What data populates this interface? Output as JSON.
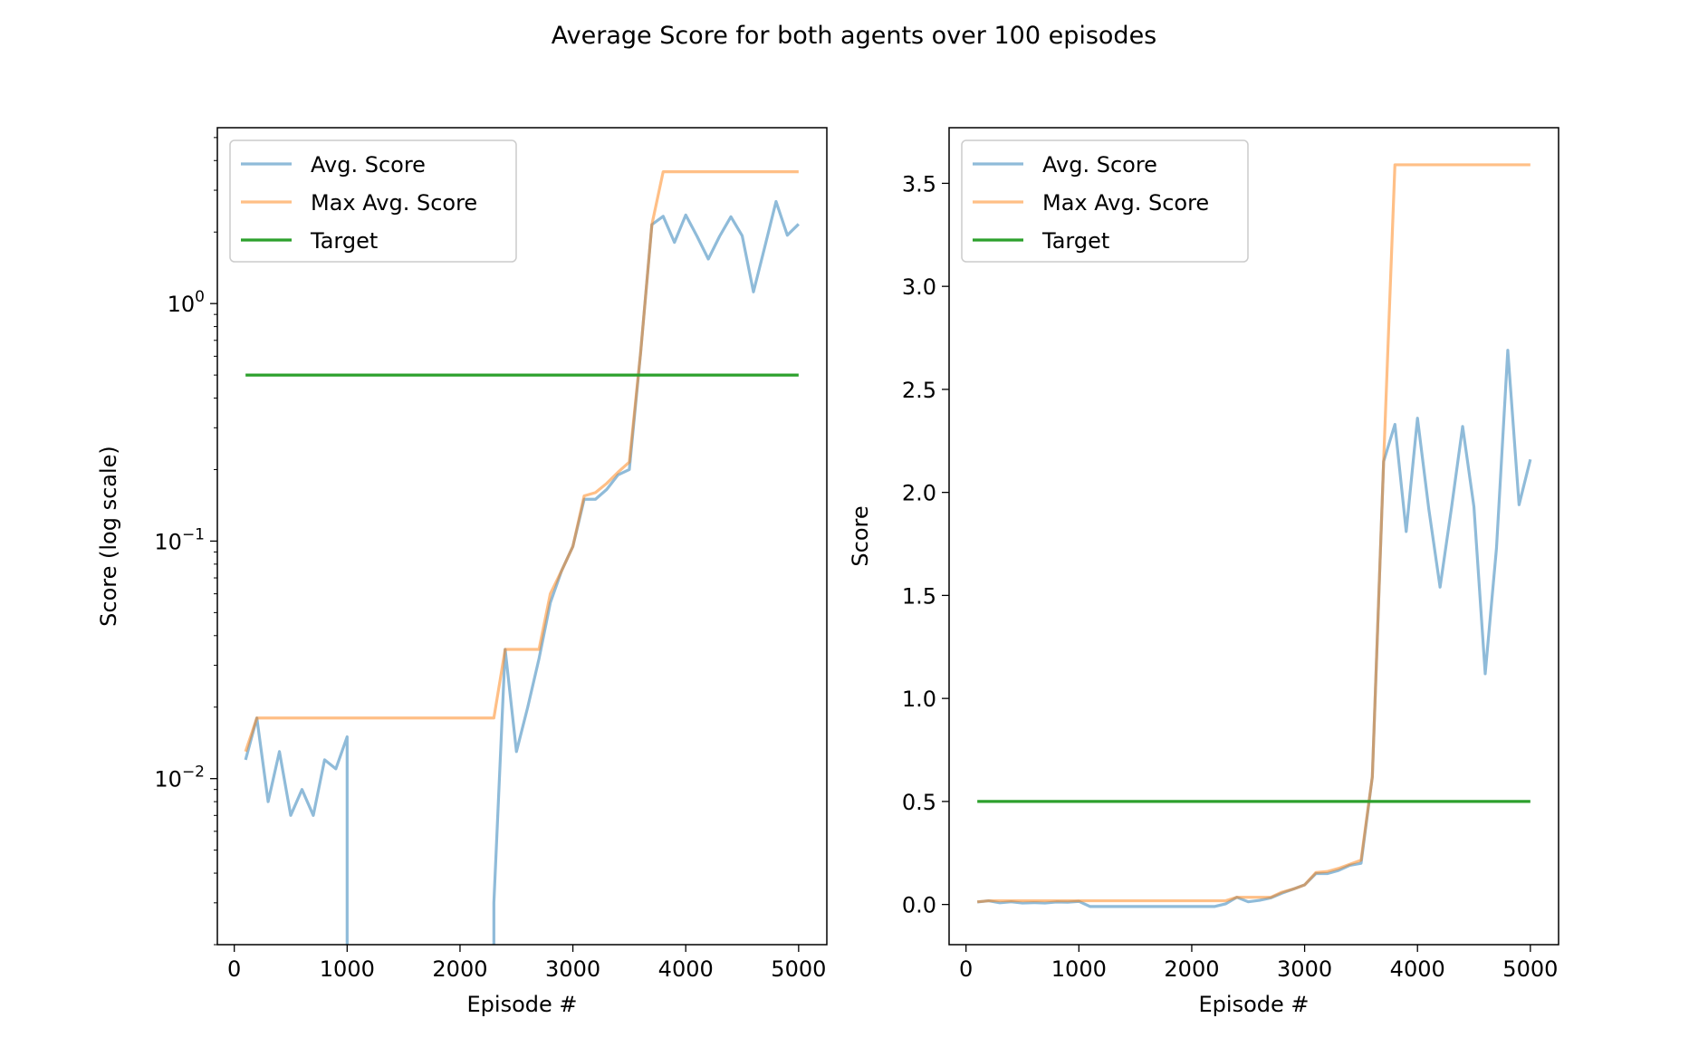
{
  "figure": {
    "title": "Average Score for both agents over 100 episodes"
  },
  "series_colors": {
    "Avg. Score": "#1f77b4",
    "Max Avg. Score": "#ff7f0e",
    "Target": "#2ca02c"
  },
  "chart_data": [
    {
      "type": "line",
      "yscale": "log",
      "xlabel": "Episode #",
      "ylabel": "Score (log scale)",
      "xlim": [
        -150,
        5250
      ],
      "ylim": [
        0.002,
        5.5
      ],
      "xticks": [
        0,
        1000,
        2000,
        3000,
        4000,
        5000
      ],
      "xtick_labels": [
        "0",
        "1000",
        "2000",
        "3000",
        "4000",
        "5000"
      ],
      "yticks": [
        0.01,
        0.1,
        1
      ],
      "ytick_labels": [
        [
          "10",
          "−2"
        ],
        [
          "10",
          "−1"
        ],
        [
          "10",
          "0"
        ]
      ],
      "legend": "upper-left",
      "series": [
        {
          "name": "Avg. Score",
          "x": [
            100,
            200,
            300,
            400,
            500,
            600,
            700,
            800,
            900,
            1000,
            1000,
            2300,
            2300,
            2400,
            2500,
            2600,
            2700,
            2800,
            2900,
            3000,
            3100,
            3200,
            3300,
            3400,
            3500,
            3600,
            3700,
            3800,
            3900,
            4000,
            4100,
            4200,
            4300,
            4400,
            4500,
            4600,
            4700,
            4800,
            4900,
            5000
          ],
          "y": [
            0.012,
            0.018,
            0.008,
            0.013,
            0.007,
            0.009,
            0.007,
            0.012,
            0.011,
            0.015,
            0.0019,
            0.0019,
            0.003,
            0.035,
            0.013,
            0.02,
            0.032,
            0.055,
            0.075,
            0.095,
            0.15,
            0.15,
            0.165,
            0.19,
            0.2,
            0.62,
            2.15,
            2.33,
            1.81,
            2.36,
            1.92,
            1.54,
            1.92,
            2.32,
            1.93,
            1.12,
            1.73,
            2.69,
            1.94,
            2.16
          ]
        },
        {
          "name": "Max Avg. Score",
          "x": [
            100,
            200,
            300,
            400,
            500,
            600,
            700,
            800,
            900,
            1000,
            1100,
            1200,
            1300,
            1400,
            1500,
            1600,
            1700,
            1800,
            1900,
            2000,
            2100,
            2200,
            2300,
            2400,
            2500,
            2600,
            2700,
            2800,
            2900,
            3000,
            3100,
            3200,
            3300,
            3400,
            3500,
            3600,
            3700,
            3800,
            3900,
            4000,
            4100,
            4200,
            4300,
            4400,
            4500,
            4600,
            4700,
            4800,
            4900,
            5000
          ],
          "y": [
            0.013,
            0.018,
            0.018,
            0.018,
            0.018,
            0.018,
            0.018,
            0.018,
            0.018,
            0.018,
            0.018,
            0.018,
            0.018,
            0.018,
            0.018,
            0.018,
            0.018,
            0.018,
            0.018,
            0.018,
            0.018,
            0.018,
            0.018,
            0.035,
            0.035,
            0.035,
            0.035,
            0.06,
            0.075,
            0.095,
            0.155,
            0.16,
            0.175,
            0.195,
            0.215,
            0.62,
            2.15,
            3.59,
            3.59,
            3.59,
            3.59,
            3.59,
            3.59,
            3.59,
            3.59,
            3.59,
            3.59,
            3.59,
            3.59,
            3.59
          ]
        },
        {
          "name": "Target",
          "x": [
            100,
            5000
          ],
          "y": [
            0.5,
            0.5
          ]
        }
      ]
    },
    {
      "type": "line",
      "yscale": "linear",
      "xlabel": "Episode #",
      "ylabel": "Score",
      "xlim": [
        -150,
        5250
      ],
      "ylim": [
        -0.195,
        3.77
      ],
      "xticks": [
        0,
        1000,
        2000,
        3000,
        4000,
        5000
      ],
      "xtick_labels": [
        "0",
        "1000",
        "2000",
        "3000",
        "4000",
        "5000"
      ],
      "yticks": [
        0,
        0.5,
        1,
        1.5,
        2,
        2.5,
        3,
        3.5
      ],
      "ytick_labels": [
        "0.0",
        "0.5",
        "1.0",
        "1.5",
        "2.0",
        "2.5",
        "3.0",
        "3.5"
      ],
      "legend": "upper-left",
      "series": [
        {
          "name": "Avg. Score",
          "x": [
            100,
            200,
            300,
            400,
            500,
            600,
            700,
            800,
            900,
            1000,
            1100,
            1200,
            1300,
            1400,
            1500,
            1600,
            1700,
            1800,
            1900,
            2000,
            2100,
            2200,
            2300,
            2400,
            2500,
            2600,
            2700,
            2800,
            2900,
            3000,
            3100,
            3200,
            3300,
            3400,
            3500,
            3600,
            3700,
            3800,
            3900,
            4000,
            4100,
            4200,
            4300,
            4400,
            4500,
            4600,
            4700,
            4800,
            4900,
            5000
          ],
          "y": [
            0.012,
            0.018,
            0.008,
            0.013,
            0.007,
            0.009,
            0.007,
            0.012,
            0.011,
            0.015,
            -0.01,
            -0.01,
            -0.01,
            -0.01,
            -0.01,
            -0.01,
            -0.01,
            -0.01,
            -0.01,
            -0.01,
            -0.01,
            -0.01,
            0.003,
            0.035,
            0.013,
            0.02,
            0.032,
            0.055,
            0.075,
            0.095,
            0.15,
            0.15,
            0.165,
            0.19,
            0.2,
            0.62,
            2.15,
            2.33,
            1.81,
            2.36,
            1.92,
            1.54,
            1.92,
            2.32,
            1.93,
            1.12,
            1.73,
            2.69,
            1.94,
            2.16
          ]
        },
        {
          "name": "Max Avg. Score",
          "x": [
            100,
            200,
            300,
            400,
            500,
            600,
            700,
            800,
            900,
            1000,
            1100,
            1200,
            1300,
            1400,
            1500,
            1600,
            1700,
            1800,
            1900,
            2000,
            2100,
            2200,
            2300,
            2400,
            2500,
            2600,
            2700,
            2800,
            2900,
            3000,
            3100,
            3200,
            3300,
            3400,
            3500,
            3600,
            3700,
            3800,
            3900,
            4000,
            4100,
            4200,
            4300,
            4400,
            4500,
            4600,
            4700,
            4800,
            4900,
            5000
          ],
          "y": [
            0.013,
            0.018,
            0.018,
            0.018,
            0.018,
            0.018,
            0.018,
            0.018,
            0.018,
            0.018,
            0.018,
            0.018,
            0.018,
            0.018,
            0.018,
            0.018,
            0.018,
            0.018,
            0.018,
            0.018,
            0.018,
            0.018,
            0.018,
            0.035,
            0.035,
            0.035,
            0.035,
            0.06,
            0.075,
            0.095,
            0.155,
            0.16,
            0.175,
            0.195,
            0.215,
            0.62,
            2.15,
            3.59,
            3.59,
            3.59,
            3.59,
            3.59,
            3.59,
            3.59,
            3.59,
            3.59,
            3.59,
            3.59,
            3.59,
            3.59
          ]
        },
        {
          "name": "Target",
          "x": [
            100,
            5000
          ],
          "y": [
            0.5,
            0.5
          ]
        }
      ]
    }
  ]
}
